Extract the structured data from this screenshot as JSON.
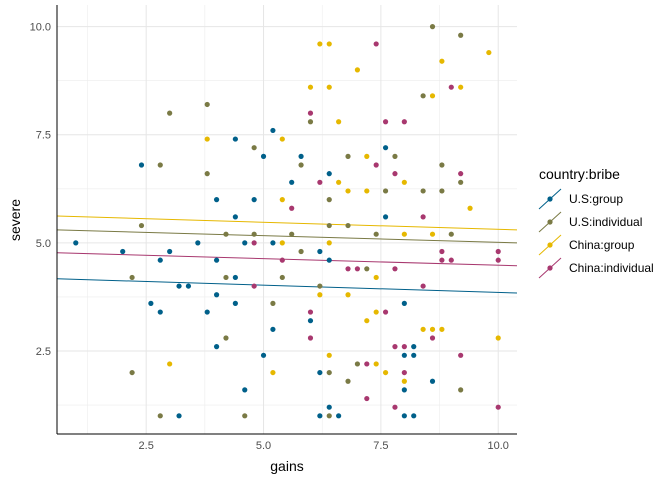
{
  "chart_data": {
    "type": "scatter",
    "xlabel": "gains",
    "ylabel": "severe",
    "xlim": [
      0.6,
      10.4
    ],
    "ylim": [
      0.58,
      10.5
    ],
    "xticks": [
      2.5,
      5.0,
      7.5,
      10.0
    ],
    "xtick_labels": [
      "2.5",
      "5.0",
      "7.5",
      "10.0"
    ],
    "yticks": [
      2.5,
      5.0,
      7.5,
      10.0
    ],
    "ytick_labels": [
      "2.5",
      "5.0",
      "7.5",
      "10.0"
    ],
    "grid": true,
    "legend": {
      "title": "country:bribe",
      "placement": "right"
    },
    "series": [
      {
        "name": "U.S:group",
        "color": "#00608a",
        "fit": {
          "x": [
            0.6,
            10.4
          ],
          "y": [
            4.17,
            3.84
          ]
        },
        "points": [
          [
            5.2,
            7.6
          ],
          [
            4.4,
            7.4
          ],
          [
            5.0,
            7.0
          ],
          [
            2.4,
            6.8
          ],
          [
            4.0,
            6.0
          ],
          [
            4.8,
            6.0
          ],
          [
            4.4,
            5.6
          ],
          [
            7.6,
            7.2
          ],
          [
            5.8,
            7.0
          ],
          [
            6.4,
            6.6
          ],
          [
            5.6,
            6.4
          ],
          [
            7.6,
            5.6
          ],
          [
            1.0,
            5.0
          ],
          [
            3.6,
            5.0
          ],
          [
            4.6,
            5.0
          ],
          [
            5.2,
            5.0
          ],
          [
            2.0,
            4.8
          ],
          [
            3.0,
            4.8
          ],
          [
            2.8,
            4.6
          ],
          [
            4.0,
            4.6
          ],
          [
            4.4,
            4.2
          ],
          [
            3.2,
            4.0
          ],
          [
            3.4,
            4.0
          ],
          [
            4.0,
            3.8
          ],
          [
            2.6,
            3.6
          ],
          [
            4.4,
            3.6
          ],
          [
            2.8,
            3.4
          ],
          [
            3.8,
            3.4
          ],
          [
            5.2,
            3.0
          ],
          [
            4.0,
            2.6
          ],
          [
            5.0,
            2.4
          ],
          [
            4.6,
            1.6
          ],
          [
            3.2,
            1.0
          ],
          [
            6.2,
            4.8
          ],
          [
            6.4,
            4.6
          ],
          [
            8.0,
            3.6
          ],
          [
            6.0,
            3.2
          ],
          [
            8.2,
            2.6
          ],
          [
            8.0,
            2.4
          ],
          [
            8.2,
            2.4
          ],
          [
            6.2,
            2.0
          ],
          [
            8.6,
            1.8
          ],
          [
            8.0,
            1.6
          ],
          [
            6.4,
            1.2
          ],
          [
            6.2,
            1.0
          ],
          [
            6.6,
            1.0
          ],
          [
            8.0,
            1.0
          ],
          [
            8.2,
            1.0
          ]
        ]
      },
      {
        "name": "U.S:individual",
        "color": "#7a7a45",
        "fit": {
          "x": [
            0.6,
            10.4
          ],
          "y": [
            5.3,
            5.0
          ]
        },
        "points": [
          [
            3.0,
            8.0
          ],
          [
            3.8,
            8.2
          ],
          [
            4.8,
            7.2
          ],
          [
            2.8,
            6.8
          ],
          [
            3.8,
            6.6
          ],
          [
            8.6,
            10.0
          ],
          [
            9.2,
            9.8
          ],
          [
            8.4,
            8.4
          ],
          [
            6.0,
            7.8
          ],
          [
            6.8,
            7.0
          ],
          [
            7.8,
            7.0
          ],
          [
            5.8,
            6.8
          ],
          [
            8.8,
            6.8
          ],
          [
            9.2,
            6.4
          ],
          [
            7.6,
            6.2
          ],
          [
            8.4,
            6.2
          ],
          [
            8.8,
            6.2
          ],
          [
            6.4,
            6.0
          ],
          [
            2.4,
            5.4
          ],
          [
            4.2,
            5.2
          ],
          [
            4.8,
            5.2
          ],
          [
            2.2,
            4.2
          ],
          [
            4.2,
            4.2
          ],
          [
            5.4,
            4.2
          ],
          [
            5.2,
            3.6
          ],
          [
            4.2,
            2.8
          ],
          [
            2.2,
            2.0
          ],
          [
            2.8,
            1.0
          ],
          [
            4.6,
            1.0
          ],
          [
            6.4,
            5.4
          ],
          [
            6.8,
            5.4
          ],
          [
            5.6,
            5.2
          ],
          [
            7.4,
            5.2
          ],
          [
            9.0,
            5.2
          ],
          [
            5.8,
            4.8
          ],
          [
            7.2,
            4.4
          ],
          [
            6.2,
            4.0
          ],
          [
            7.0,
            2.2
          ],
          [
            6.4,
            2.0
          ],
          [
            6.8,
            1.8
          ],
          [
            9.2,
            1.6
          ],
          [
            6.4,
            1.0
          ]
        ]
      },
      {
        "name": "China:group",
        "color": "#e6b800",
        "fit": {
          "x": [
            0.6,
            10.4
          ],
          "y": [
            5.62,
            5.3
          ]
        },
        "points": [
          [
            3.8,
            7.4
          ],
          [
            5.4,
            7.4
          ],
          [
            5.4,
            6.0
          ],
          [
            6.2,
            9.6
          ],
          [
            6.4,
            9.6
          ],
          [
            9.8,
            9.4
          ],
          [
            8.8,
            9.2
          ],
          [
            7.0,
            9.0
          ],
          [
            6.0,
            8.6
          ],
          [
            6.4,
            8.6
          ],
          [
            9.2,
            8.6
          ],
          [
            8.6,
            8.4
          ],
          [
            6.6,
            7.8
          ],
          [
            7.2,
            7.0
          ],
          [
            6.6,
            6.4
          ],
          [
            8.0,
            6.4
          ],
          [
            6.8,
            6.2
          ],
          [
            7.2,
            6.2
          ],
          [
            9.4,
            5.8
          ],
          [
            5.4,
            5.0
          ],
          [
            3.0,
            2.2
          ],
          [
            5.2,
            2.0
          ],
          [
            8.0,
            5.2
          ],
          [
            8.6,
            5.2
          ],
          [
            6.4,
            5.0
          ],
          [
            7.4,
            4.2
          ],
          [
            6.2,
            3.8
          ],
          [
            6.8,
            3.8
          ],
          [
            7.4,
            3.4
          ],
          [
            7.2,
            3.2
          ],
          [
            8.4,
            3.0
          ],
          [
            8.6,
            3.0
          ],
          [
            8.8,
            3.0
          ],
          [
            10.0,
            2.8
          ],
          [
            6.4,
            2.4
          ],
          [
            7.4,
            2.2
          ],
          [
            7.6,
            2.0
          ],
          [
            8.0,
            1.8
          ]
        ]
      },
      {
        "name": "China:individual",
        "color": "#a8386f",
        "fit": {
          "x": [
            0.6,
            10.4
          ],
          "y": [
            4.77,
            4.47
          ]
        },
        "points": [
          [
            7.4,
            9.6
          ],
          [
            9.0,
            8.6
          ],
          [
            6.0,
            8.0
          ],
          [
            7.6,
            7.8
          ],
          [
            8.0,
            7.8
          ],
          [
            7.4,
            6.8
          ],
          [
            7.8,
            6.6
          ],
          [
            9.2,
            6.6
          ],
          [
            6.2,
            6.4
          ],
          [
            5.6,
            5.8
          ],
          [
            8.4,
            5.6
          ],
          [
            4.8,
            5.0
          ],
          [
            5.4,
            4.6
          ],
          [
            4.8,
            4.0
          ],
          [
            8.8,
            4.8
          ],
          [
            10.0,
            4.8
          ],
          [
            8.8,
            4.6
          ],
          [
            9.0,
            4.6
          ],
          [
            10.0,
            4.6
          ],
          [
            6.8,
            4.4
          ],
          [
            7.0,
            4.4
          ],
          [
            7.8,
            4.4
          ],
          [
            8.4,
            4.0
          ],
          [
            6.0,
            3.4
          ],
          [
            7.6,
            3.4
          ],
          [
            6.0,
            2.8
          ],
          [
            8.6,
            2.8
          ],
          [
            7.8,
            2.6
          ],
          [
            8.0,
            2.6
          ],
          [
            9.2,
            2.4
          ],
          [
            7.2,
            2.2
          ],
          [
            8.0,
            2.0
          ],
          [
            7.2,
            1.4
          ],
          [
            7.8,
            1.2
          ],
          [
            10.0,
            1.2
          ]
        ]
      }
    ]
  }
}
